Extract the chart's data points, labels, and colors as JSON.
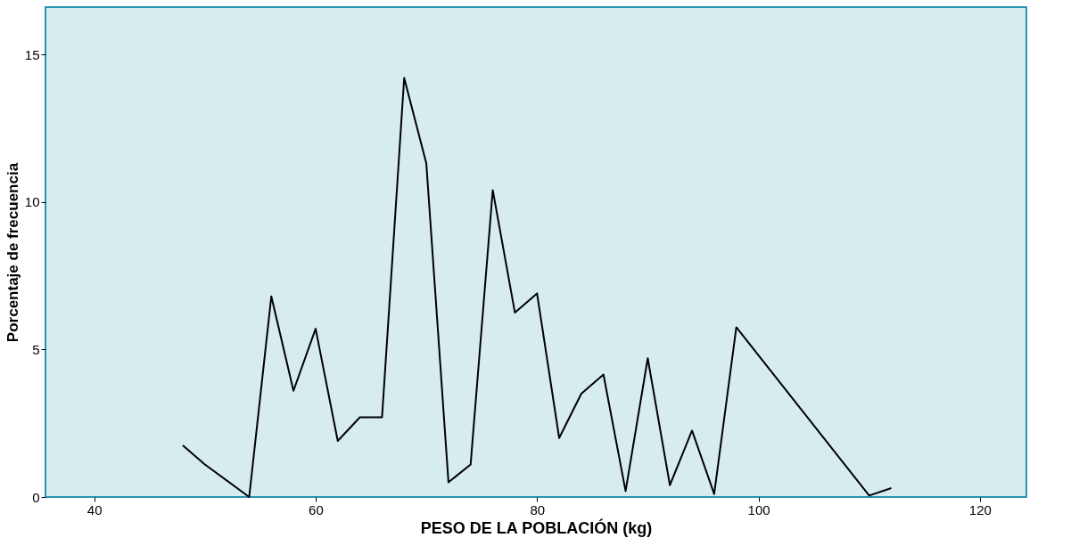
{
  "chart_data": {
    "type": "line",
    "xlabel": "PESO DE LA POBLACIÓN (kg)",
    "ylabel": "Porcentaje de frecuencia",
    "x": [
      48,
      50,
      54,
      56,
      58,
      60,
      62,
      64,
      66,
      68,
      70,
      72,
      74,
      76,
      78,
      80,
      82,
      84,
      86,
      88,
      90,
      92,
      94,
      96,
      98,
      110,
      112
    ],
    "series": [
      {
        "color": "#000000",
        "values": [
          1.75,
          1.1,
          0,
          6.8,
          3.6,
          5.7,
          1.9,
          2.7,
          2.7,
          14.2,
          11.3,
          0.5,
          1.1,
          10.4,
          6.25,
          6.9,
          2.0,
          3.5,
          4.15,
          0.2,
          4.7,
          0.4,
          2.25,
          0.1,
          5.75,
          0.05,
          0.3
        ]
      }
    ],
    "xlim": [
      35.6,
      124.2
    ],
    "ylim": [
      0,
      16.6
    ],
    "xticks": [
      40,
      60,
      80,
      100,
      120
    ],
    "yticks": [
      0,
      5,
      10,
      15
    ],
    "grid": false,
    "marker": "none",
    "line_style": "solid"
  }
}
